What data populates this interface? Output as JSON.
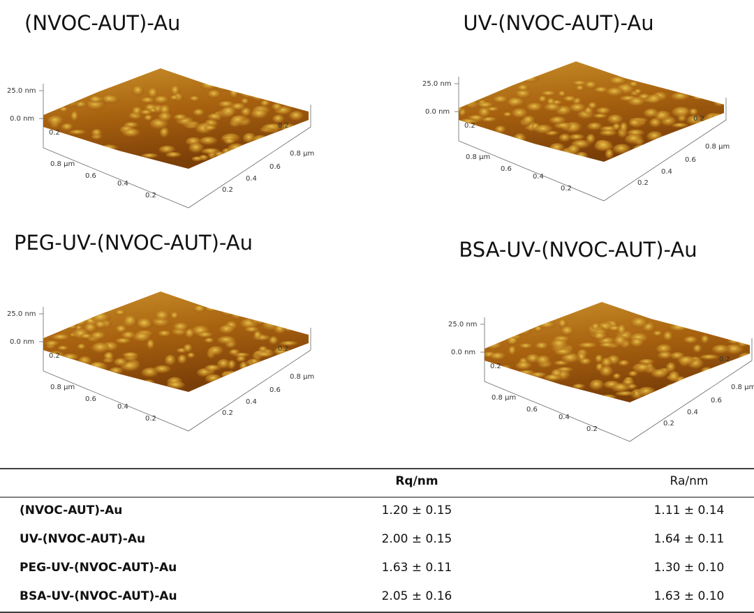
{
  "panels": [
    {
      "title": "(NVOC-AUT)-Au",
      "z_ticks": [
        "25.0 nm",
        "0.0 nm"
      ],
      "back_tick": "0.2",
      "x_ticks": [
        "0.8 µm",
        "0.6",
        "0.4",
        "0.2"
      ],
      "y_ticks": [
        "0.2",
        "0.8 µm",
        "0.6",
        "0.4",
        "0.2"
      ]
    },
    {
      "title": "UV-(NVOC-AUT)-Au",
      "z_ticks": [
        "25.0 nm",
        "0.0 nm"
      ],
      "back_tick": "0.2",
      "x_ticks": [
        "0.8 µm",
        "0.6",
        "0.4",
        "0.2"
      ],
      "y_ticks": [
        "0.2",
        "0.8 µm",
        "0.6",
        "0.4",
        "0.2"
      ]
    },
    {
      "title": "PEG-UV-(NVOC-AUT)-Au",
      "z_ticks": [
        "25.0 nm",
        "0.0 nm"
      ],
      "back_tick": "0.2",
      "x_ticks": [
        "0.8 µm",
        "0.6",
        "0.4",
        "0.2"
      ],
      "y_ticks": [
        "0.2",
        "0.8 µm",
        "0.6",
        "0.4",
        "0.2"
      ]
    },
    {
      "title": "BSA-UV-(NVOC-AUT)-Au",
      "z_ticks": [
        "25.0 nm",
        "0.0 nm"
      ],
      "back_tick": "0.2",
      "x_ticks": [
        "0.8 µm",
        "0.6",
        "0.4",
        "0.2"
      ],
      "y_ticks": [
        "0.2",
        "0.8 µm",
        "0.6",
        "0.4",
        "0.2"
      ]
    }
  ],
  "table": {
    "header": [
      "Rq/nm",
      "Ra/nm"
    ],
    "rows": [
      [
        "(NVOC-AUT)-Au",
        "1.20 ± 0.15",
        "1.11 ± 0.14"
      ],
      [
        "UV-(NVOC-AUT)-Au",
        "2.00 ± 0.15",
        "1.64 ± 0.11"
      ],
      [
        "PEG-UV-(NVOC-AUT)-Au",
        "1.63 ± 0.11",
        "1.30 ± 0.10"
      ],
      [
        "BSA-UV-(NVOC-AUT)-Au",
        "2.05 ± 0.16",
        "1.63 ± 0.10"
      ]
    ]
  }
}
